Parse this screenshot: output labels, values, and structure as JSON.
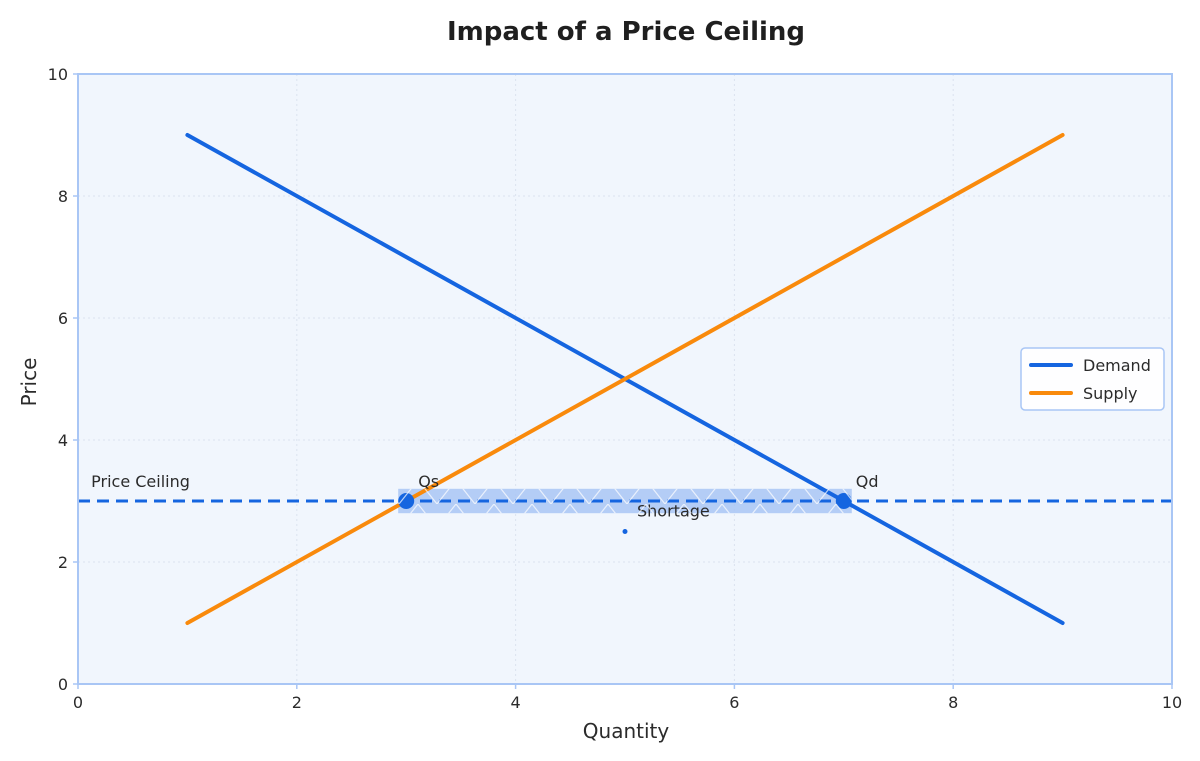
{
  "chart_data": {
    "type": "line",
    "title": "Impact of a Price Ceiling",
    "xlabel": "Quantity",
    "ylabel": "Price",
    "xlim": [
      0,
      10
    ],
    "ylim": [
      0,
      10
    ],
    "xticks": [
      0,
      2,
      4,
      6,
      8,
      10
    ],
    "yticks": [
      0,
      2,
      4,
      6,
      8,
      10
    ],
    "grid": true,
    "legend_position": "right",
    "series": [
      {
        "name": "Demand",
        "color": "#1565e0",
        "x": [
          1,
          9
        ],
        "y": [
          9,
          1
        ]
      },
      {
        "name": "Supply",
        "color": "#f98a0c",
        "x": [
          1,
          9
        ],
        "y": [
          1,
          9
        ]
      }
    ],
    "price_ceiling": {
      "label": "Price Ceiling",
      "value": 3,
      "color": "#1565e0",
      "style": "dashed"
    },
    "points": [
      {
        "label": "Qs",
        "x": 3,
        "y": 3
      },
      {
        "label": "Qd",
        "x": 7,
        "y": 3
      }
    ],
    "shortage": {
      "label": "Shortage",
      "x_from": 3,
      "x_to": 7,
      "y_from": 2.8,
      "y_to": 3.2,
      "marker_x": 5,
      "marker_y": 2.5,
      "color": "#a9c6f5"
    },
    "colors": {
      "plot_background": "#f1f6fd",
      "plot_border": "#a9c6f5",
      "grid": "#dbe3ef"
    }
  }
}
